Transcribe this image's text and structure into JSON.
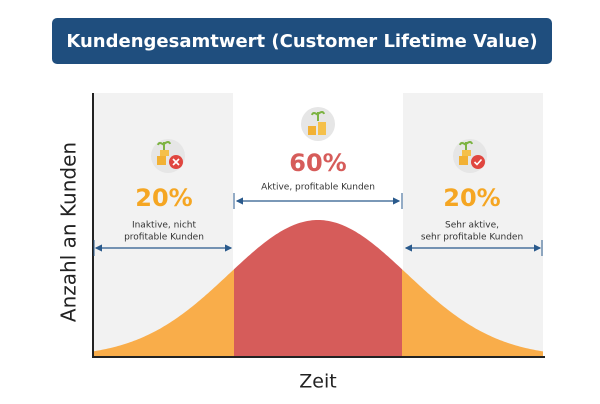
{
  "title": "Kundengesamtwert (Customer Lifetime Value)",
  "y_axis_label": "Anzahl an Kunden",
  "x_axis_label": "Zeit",
  "segments": [
    {
      "percent": "20%",
      "label_lines": [
        "Inaktive, nicht",
        "profitable Kunden"
      ]
    },
    {
      "percent": "60%",
      "label_lines": [
        "Aktive, profitable Kunden"
      ]
    },
    {
      "percent": "20%",
      "label_lines": [
        "Sehr aktive,",
        "sehr profitable Kunden"
      ]
    }
  ]
}
